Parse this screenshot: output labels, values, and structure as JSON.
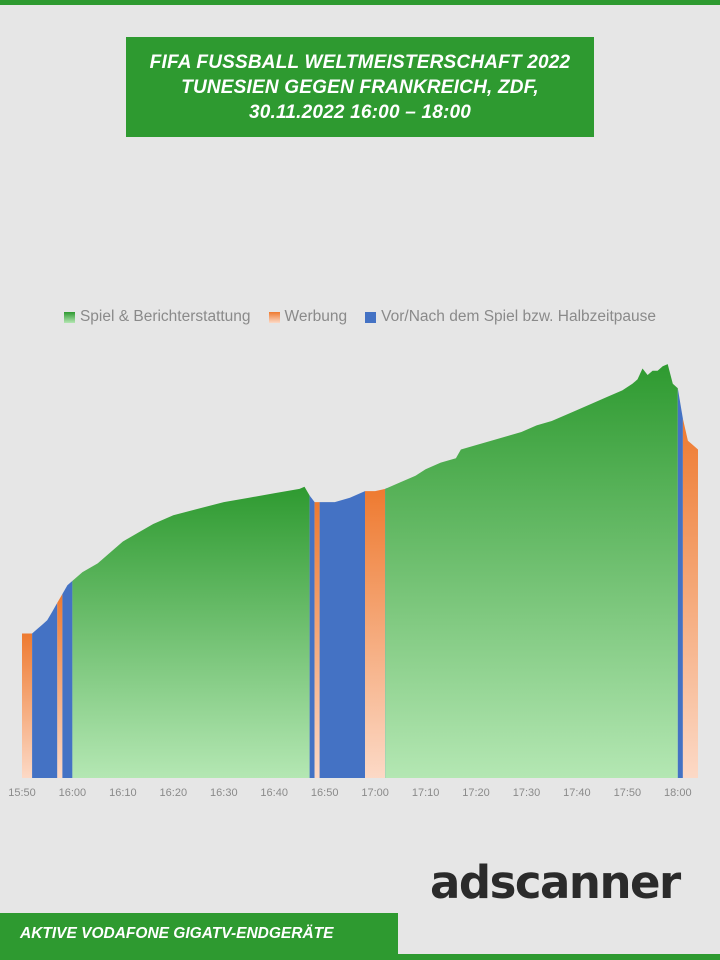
{
  "title": {
    "line1": "FIFA FUSSBALL WELTMEISTERSCHAFT 2022",
    "line2": "TUNESIEN GEGEN FRANKREICH, ZDF,",
    "line3": "30.11.2022  16:00 – 18:00"
  },
  "brand": "adscanner",
  "footer": "AKTIVE VODAFONE GIGATV-ENDGERÄTE",
  "chart_data": {
    "type": "area",
    "x_ticks": [
      "15:50",
      "16:00",
      "16:10",
      "16:20",
      "16:30",
      "16:40",
      "16:50",
      "17:00",
      "17:10",
      "17:20",
      "17:30",
      "17:40",
      "17:50",
      "18:00"
    ],
    "xlim": [
      "15:50",
      "18:04"
    ],
    "ylim": [
      0,
      100
    ],
    "grid": false,
    "legend_position": "top-center",
    "series": [
      {
        "name": "Spiel & Berichterstattung",
        "color": "#2e9a30",
        "color_light": "#b4e7b3"
      },
      {
        "name": "Werbung",
        "color": "#ee7a30",
        "color_light": "#fcd9c6"
      },
      {
        "name": "Vor/Nach dem Spiel bzw. Halbzeitpause",
        "color": "#4472c4"
      }
    ],
    "segments": [
      {
        "series": 1,
        "start": "15:50",
        "end": "15:52"
      },
      {
        "series": 2,
        "start": "15:52",
        "end": "15:57"
      },
      {
        "series": 1,
        "start": "15:57",
        "end": "15:58"
      },
      {
        "series": 2,
        "start": "15:58",
        "end": "16:00"
      },
      {
        "series": 0,
        "start": "16:00",
        "end": "16:47"
      },
      {
        "series": 2,
        "start": "16:47",
        "end": "16:48"
      },
      {
        "series": 1,
        "start": "16:48",
        "end": "16:49"
      },
      {
        "series": 2,
        "start": "16:49",
        "end": "16:58"
      },
      {
        "series": 1,
        "start": "16:58",
        "end": "17:02"
      },
      {
        "series": 2,
        "start": "17:02",
        "end": "17:02"
      },
      {
        "series": 0,
        "start": "17:02",
        "end": "18:00"
      },
      {
        "series": 2,
        "start": "18:00",
        "end": "18:01"
      },
      {
        "series": 1,
        "start": "18:01",
        "end": "18:04"
      }
    ],
    "points": [
      [
        "15:50",
        33
      ],
      [
        "15:52",
        33
      ],
      [
        "15:53",
        34
      ],
      [
        "15:54",
        35
      ],
      [
        "15:55",
        36
      ],
      [
        "15:56",
        38
      ],
      [
        "15:57",
        40
      ],
      [
        "15:58",
        42
      ],
      [
        "15:59",
        44
      ],
      [
        "16:00",
        45
      ],
      [
        "16:02",
        47
      ],
      [
        "16:05",
        49
      ],
      [
        "16:08",
        52
      ],
      [
        "16:10",
        54
      ],
      [
        "16:13",
        56
      ],
      [
        "16:16",
        58
      ],
      [
        "16:20",
        60
      ],
      [
        "16:25",
        61.5
      ],
      [
        "16:30",
        63
      ],
      [
        "16:35",
        64
      ],
      [
        "16:40",
        65
      ],
      [
        "16:45",
        66
      ],
      [
        "16:46",
        66.5
      ],
      [
        "16:47",
        64.5
      ],
      [
        "16:48",
        63
      ],
      [
        "16:49",
        63
      ],
      [
        "16:52",
        63
      ],
      [
        "16:55",
        64
      ],
      [
        "16:58",
        65.5
      ],
      [
        "17:00",
        65.5
      ],
      [
        "17:02",
        66
      ],
      [
        "17:05",
        67.5
      ],
      [
        "17:08",
        69
      ],
      [
        "17:10",
        70.5
      ],
      [
        "17:13",
        72
      ],
      [
        "17:16",
        73
      ],
      [
        "17:17",
        75
      ],
      [
        "17:20",
        76
      ],
      [
        "17:23",
        77
      ],
      [
        "17:26",
        78
      ],
      [
        "17:29",
        79
      ],
      [
        "17:32",
        80.5
      ],
      [
        "17:35",
        81.5
      ],
      [
        "17:38",
        83
      ],
      [
        "17:40",
        84
      ],
      [
        "17:43",
        85.5
      ],
      [
        "17:46",
        87
      ],
      [
        "17:49",
        88.5
      ],
      [
        "17:51",
        90
      ],
      [
        "17:52",
        91
      ],
      [
        "17:53",
        93.5
      ],
      [
        "17:54",
        92
      ],
      [
        "17:55",
        93
      ],
      [
        "17:56",
        93
      ],
      [
        "17:57",
        94
      ],
      [
        "17:58",
        94.5
      ],
      [
        "17:59",
        90
      ],
      [
        "18:00",
        89
      ],
      [
        "18:01",
        82
      ],
      [
        "18:02",
        77
      ],
      [
        "18:03",
        76
      ],
      [
        "18:04",
        75
      ]
    ]
  }
}
